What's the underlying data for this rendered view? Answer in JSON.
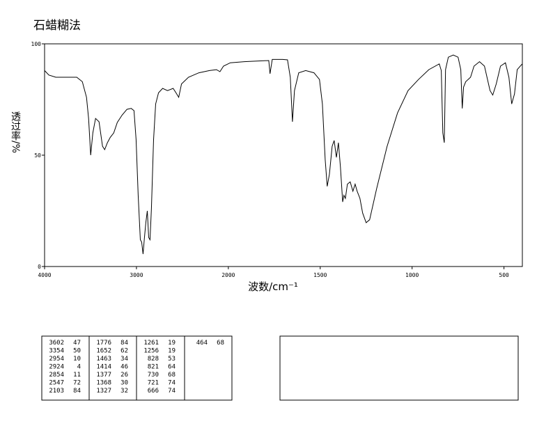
{
  "chart_data": {
    "type": "line",
    "title": "石蜡糊法",
    "xlabel": "波数/cm⁻¹",
    "ylabel": "透过率/%",
    "xlim": [
      4000,
      400
    ],
    "xbreak": 2000,
    "ylim": [
      0,
      100
    ],
    "xticks": [
      4000,
      3000,
      2000,
      1500,
      1000,
      500
    ],
    "yticks": [
      0,
      50,
      100
    ],
    "color": "#000000",
    "x": [
      4000,
      3954,
      3878,
      3650,
      3589,
      3544,
      3521,
      3498,
      3475,
      3445,
      3407,
      3369,
      3346,
      3316,
      3285,
      3247,
      3209,
      3156,
      3103,
      3057,
      3027,
      3004,
      2981,
      2958,
      2943,
      2928,
      2913,
      2897,
      2882,
      2867,
      2852,
      2837,
      2814,
      2791,
      2760,
      2715,
      2662,
      2601,
      2570,
      2540,
      2510,
      2434,
      2320,
      2205,
      2129,
      2091,
      2053,
      1989,
      1913,
      1780,
      1773,
      1761,
      1704,
      1678,
      1663,
      1651,
      1640,
      1617,
      1579,
      1534,
      1504,
      1488,
      1473,
      1462,
      1450,
      1435,
      1424,
      1412,
      1401,
      1390,
      1378,
      1371,
      1363,
      1352,
      1337,
      1322,
      1310,
      1299,
      1284,
      1269,
      1250,
      1231,
      1193,
      1136,
      1079,
      1022,
      965,
      909,
      852,
      841,
      833,
      825,
      818,
      803,
      776,
      750,
      735,
      727,
      720,
      708,
      682,
      663,
      633,
      606,
      576,
      561,
      542,
      519,
      492,
      473,
      458,
      443,
      428,
      405,
      400
    ],
    "y": [
      88,
      86,
      85,
      85,
      83,
      76,
      66.5,
      50,
      60,
      66.5,
      65,
      54,
      52.5,
      55.6,
      58,
      60,
      64.7,
      68,
      70.6,
      71,
      70,
      57,
      32,
      12,
      11,
      5.6,
      13,
      20,
      25,
      13,
      12,
      26,
      57,
      73,
      78,
      80,
      79,
      80,
      78,
      76,
      82,
      85,
      87,
      88,
      88.4,
      87.5,
      90,
      91.5,
      92,
      92.5,
      86.6,
      93,
      93,
      92.8,
      85,
      65,
      79,
      87,
      88,
      87,
      84,
      73,
      48,
      36,
      41.5,
      54,
      56.6,
      49,
      55.6,
      44.7,
      29,
      32,
      30.6,
      37,
      38,
      33.8,
      37,
      33.8,
      30.6,
      24,
      19.7,
      21,
      35,
      54,
      69,
      79,
      84,
      88.4,
      91,
      88,
      60,
      55.6,
      88.4,
      94,
      95,
      94,
      88.4,
      71,
      80.6,
      83,
      85,
      90,
      92,
      90,
      79,
      77,
      82,
      90,
      91.5,
      85,
      73,
      77.5,
      88.4,
      90.6,
      91
    ]
  },
  "peak_table": [
    [
      [
        3602,
        47
      ],
      [
        3354,
        50
      ],
      [
        2954,
        10
      ],
      [
        2924,
        4
      ],
      [
        2854,
        11
      ],
      [
        2547,
        72
      ],
      [
        2103,
        84
      ]
    ],
    [
      [
        1776,
        84
      ],
      [
        1652,
        62
      ],
      [
        1463,
        34
      ],
      [
        1414,
        46
      ],
      [
        1377,
        26
      ],
      [
        1368,
        30
      ],
      [
        1327,
        32
      ]
    ],
    [
      [
        1261,
        19
      ],
      [
        1256,
        19
      ],
      [
        828,
        53
      ],
      [
        821,
        64
      ],
      [
        730,
        68
      ],
      [
        721,
        74
      ],
      [
        666,
        74
      ]
    ],
    [
      [
        464,
        68
      ]
    ]
  ]
}
